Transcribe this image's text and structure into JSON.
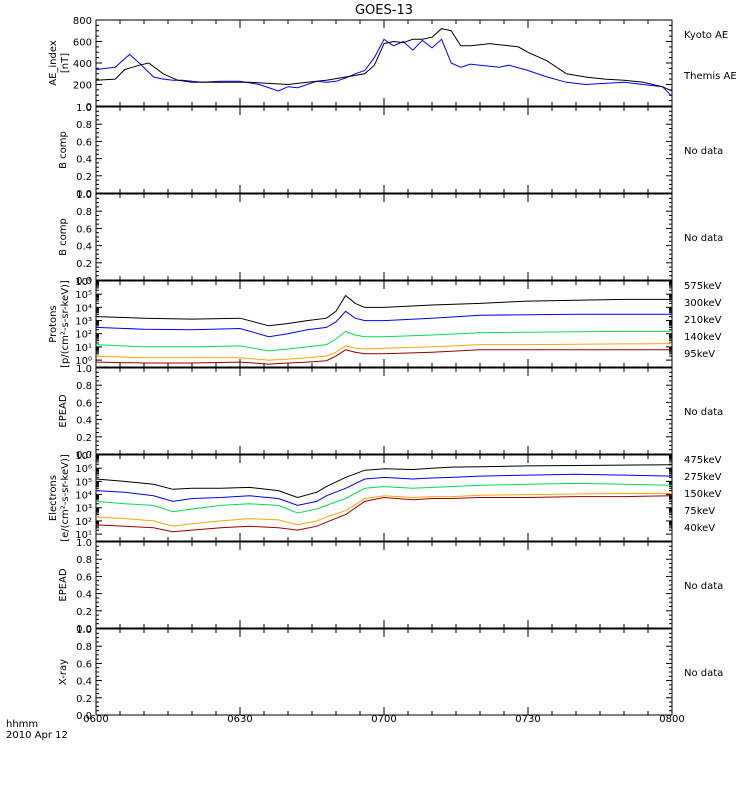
{
  "title": "GOES-13",
  "xlabel": "hhmm",
  "date": "2010 Apr 12",
  "x_ticks": [
    "0600",
    "0630",
    "0700",
    "0730",
    "0800"
  ],
  "no_data_label": "No data",
  "colors": {
    "black": "#000000",
    "blue": "#0000ff",
    "green": "#00dd55",
    "orange": "#ffa500",
    "darkred": "#990000"
  },
  "chart_data": [
    {
      "id": "ae",
      "type": "line",
      "ylabel_lines": [
        "AE_index",
        "[nT]"
      ],
      "ylim": [
        0,
        800
      ],
      "yticks": [
        "0",
        "200",
        "400",
        "600",
        "800"
      ],
      "x_unit": "minutes after 0600",
      "series": [
        {
          "name": "Kyoto AE",
          "color": "#0000ff",
          "x": [
            0,
            4,
            7,
            9,
            12,
            14,
            16,
            18,
            20,
            22,
            26,
            30,
            34,
            38,
            40,
            42,
            44,
            46,
            48,
            50,
            52,
            54,
            56,
            58,
            60,
            62,
            64,
            66,
            68,
            70,
            72,
            74,
            76,
            78,
            80,
            82,
            84,
            86,
            90,
            94,
            98,
            102,
            106,
            110,
            114,
            118,
            120
          ],
          "values": [
            340,
            360,
            480,
            400,
            270,
            250,
            240,
            240,
            230,
            220,
            230,
            230,
            200,
            140,
            180,
            170,
            200,
            230,
            220,
            230,
            260,
            300,
            330,
            450,
            620,
            560,
            600,
            520,
            610,
            540,
            620,
            400,
            360,
            390,
            380,
            370,
            360,
            380,
            330,
            270,
            220,
            200,
            210,
            220,
            200,
            180,
            90
          ]
        },
        {
          "name": "Themis AE",
          "color": "#000000",
          "x": [
            0,
            4,
            6,
            9,
            11,
            14,
            17,
            20,
            24,
            28,
            32,
            36,
            40,
            44,
            48,
            52,
            56,
            58,
            60,
            62,
            64,
            66,
            68,
            70,
            72,
            74,
            76,
            78,
            80,
            82,
            84,
            86,
            88,
            90,
            94,
            98,
            102,
            106,
            110,
            114,
            118,
            120
          ],
          "values": [
            240,
            250,
            340,
            380,
            400,
            300,
            240,
            220,
            220,
            220,
            220,
            210,
            200,
            220,
            240,
            270,
            300,
            380,
            580,
            600,
            590,
            620,
            620,
            640,
            720,
            700,
            560,
            560,
            570,
            580,
            570,
            560,
            550,
            500,
            420,
            300,
            270,
            250,
            240,
            220,
            180,
            140
          ]
        }
      ]
    },
    {
      "id": "bcomp1",
      "type": "line",
      "ylabel_lines": [
        "B comp"
      ],
      "ylim": [
        0,
        1
      ],
      "yticks": [
        "0.0",
        "0.2",
        "0.4",
        "0.6",
        "0.8",
        "1.0"
      ],
      "series": [],
      "no_data": true
    },
    {
      "id": "bcomp2",
      "type": "line",
      "ylabel_lines": [
        "B comp"
      ],
      "ylim": [
        0,
        1
      ],
      "yticks": [
        "0.0",
        "0.2",
        "0.4",
        "0.6",
        "0.8",
        "1.0"
      ],
      "series": [],
      "no_data": true
    },
    {
      "id": "protons",
      "type": "line",
      "ylabel_lines": [
        "Protons",
        "[p/(cm²-s-sr-keV)]"
      ],
      "log": true,
      "ylim": [
        0.3,
        1000000
      ],
      "yticks": [
        "10⁰",
        "10¹",
        "10²",
        "10³",
        "10⁴",
        "10⁵",
        "10⁶"
      ],
      "x_unit": "minutes after 0600",
      "series": [
        {
          "name": "575keV",
          "color": "#990000",
          "x": [
            0,
            10,
            20,
            30,
            36,
            40,
            44,
            48,
            50,
            52,
            54,
            56,
            60,
            70,
            80,
            90,
            100,
            110,
            120
          ],
          "values": [
            0.7,
            0.6,
            0.6,
            0.7,
            0.5,
            0.6,
            0.7,
            0.9,
            2,
            6,
            4,
            3,
            3,
            4,
            6,
            6,
            6,
            6,
            6
          ]
        },
        {
          "name": "300keV",
          "color": "#ffa500",
          "x": [
            0,
            10,
            20,
            30,
            36,
            40,
            44,
            48,
            50,
            52,
            54,
            56,
            60,
            70,
            80,
            90,
            100,
            110,
            120
          ],
          "values": [
            2,
            1.5,
            1.5,
            1.5,
            1,
            1.2,
            1.5,
            2,
            4,
            12,
            8,
            7,
            8,
            10,
            15,
            15,
            16,
            17,
            18
          ]
        },
        {
          "name": "210keV",
          "color": "#00dd55",
          "x": [
            0,
            10,
            20,
            30,
            36,
            40,
            44,
            48,
            50,
            52,
            54,
            56,
            60,
            70,
            80,
            90,
            100,
            110,
            120
          ],
          "values": [
            15,
            10,
            10,
            12,
            5,
            7,
            10,
            15,
            40,
            150,
            80,
            60,
            60,
            80,
            120,
            130,
            140,
            150,
            150
          ]
        },
        {
          "name": "140keV",
          "color": "#0000ff",
          "x": [
            0,
            10,
            20,
            30,
            36,
            40,
            44,
            48,
            50,
            52,
            54,
            56,
            60,
            70,
            80,
            90,
            100,
            110,
            120
          ],
          "values": [
            300,
            220,
            200,
            250,
            60,
            100,
            200,
            300,
            800,
            5000,
            1500,
            1000,
            1000,
            1500,
            2500,
            2800,
            3000,
            3000,
            3000
          ]
        },
        {
          "name": "95keV",
          "color": "#000000",
          "x": [
            0,
            10,
            20,
            30,
            36,
            40,
            44,
            48,
            50,
            52,
            54,
            56,
            60,
            70,
            80,
            90,
            100,
            110,
            120
          ],
          "values": [
            2000,
            1500,
            1300,
            1500,
            400,
            600,
            1000,
            1500,
            5000,
            80000,
            20000,
            10000,
            10000,
            15000,
            20000,
            30000,
            35000,
            40000,
            40000
          ]
        }
      ]
    },
    {
      "id": "epead1",
      "type": "line",
      "ylabel_lines": [
        "EPEAD"
      ],
      "ylim": [
        0,
        1
      ],
      "yticks": [
        "0.0",
        "0.2",
        "0.4",
        "0.6",
        "0.8",
        "1.0"
      ],
      "series": [],
      "no_data": true
    },
    {
      "id": "electrons",
      "type": "line",
      "ylabel_lines": [
        "Electrons",
        "[e/(cm²-s-sr-keV)]"
      ],
      "log": true,
      "ylim": [
        3,
        10000000
      ],
      "yticks": [
        "10¹",
        "10²",
        "10³",
        "10⁴",
        "10⁵",
        "10⁶",
        "10⁷"
      ],
      "x_unit": "minutes after 0600",
      "series": [
        {
          "name": "475keV",
          "color": "#990000",
          "x": [
            0,
            6,
            12,
            16,
            20,
            26,
            32,
            38,
            42,
            46,
            48,
            52,
            56,
            60,
            66,
            70,
            74,
            80,
            90,
            100,
            110,
            120
          ],
          "values": [
            50,
            40,
            30,
            15,
            20,
            30,
            40,
            30,
            20,
            40,
            80,
            300,
            3000,
            6000,
            4000,
            5000,
            5000,
            6000,
            6000,
            7000,
            7000,
            8000
          ]
        },
        {
          "name": "275keV",
          "color": "#ffa500",
          "x": [
            0,
            6,
            12,
            16,
            20,
            26,
            32,
            38,
            42,
            46,
            48,
            52,
            56,
            60,
            66,
            70,
            74,
            80,
            90,
            100,
            110,
            120
          ],
          "values": [
            200,
            150,
            100,
            40,
            60,
            100,
            150,
            120,
            50,
            100,
            200,
            600,
            5000,
            8000,
            6000,
            7000,
            7000,
            9000,
            10000,
            11000,
            12000,
            12000
          ]
        },
        {
          "name": "150keV",
          "color": "#00dd55",
          "x": [
            0,
            6,
            12,
            16,
            20,
            26,
            32,
            38,
            42,
            46,
            48,
            52,
            56,
            60,
            66,
            70,
            74,
            80,
            90,
            100,
            110,
            120
          ],
          "values": [
            3000,
            2000,
            1500,
            500,
            800,
            1500,
            2000,
            1500,
            400,
            800,
            1500,
            5000,
            30000,
            40000,
            30000,
            35000,
            40000,
            50000,
            60000,
            70000,
            60000,
            50000
          ]
        },
        {
          "name": "75keV",
          "color": "#0000ff",
          "x": [
            0,
            6,
            12,
            16,
            20,
            26,
            32,
            38,
            42,
            46,
            48,
            52,
            56,
            60,
            66,
            70,
            74,
            80,
            90,
            100,
            110,
            120
          ],
          "values": [
            20000,
            15000,
            8000,
            3000,
            5000,
            6000,
            8000,
            5000,
            1500,
            3000,
            8000,
            30000,
            150000,
            200000,
            150000,
            180000,
            200000,
            250000,
            300000,
            350000,
            300000,
            250000
          ]
        },
        {
          "name": "40keV",
          "color": "#000000",
          "x": [
            0,
            6,
            12,
            16,
            20,
            26,
            32,
            38,
            42,
            46,
            48,
            52,
            56,
            60,
            66,
            70,
            74,
            80,
            90,
            100,
            110,
            120
          ],
          "values": [
            150000,
            100000,
            60000,
            25000,
            30000,
            30000,
            35000,
            20000,
            6000,
            15000,
            40000,
            200000,
            700000,
            900000,
            800000,
            1000000,
            1200000,
            1300000,
            1500000,
            1600000,
            1700000,
            1800000
          ]
        }
      ]
    },
    {
      "id": "epead2",
      "type": "line",
      "ylabel_lines": [
        "EPEAD"
      ],
      "ylim": [
        0,
        1
      ],
      "yticks": [
        "0.0",
        "0.2",
        "0.4",
        "0.6",
        "0.8",
        "1.0"
      ],
      "series": [],
      "no_data": true
    },
    {
      "id": "xray",
      "type": "line",
      "ylabel_lines": [
        "X-ray"
      ],
      "ylim": [
        0,
        1
      ],
      "yticks": [
        "0.0",
        "0.2",
        "0.4",
        "0.6",
        "0.8",
        "1.0"
      ],
      "series": [],
      "no_data": true
    }
  ]
}
